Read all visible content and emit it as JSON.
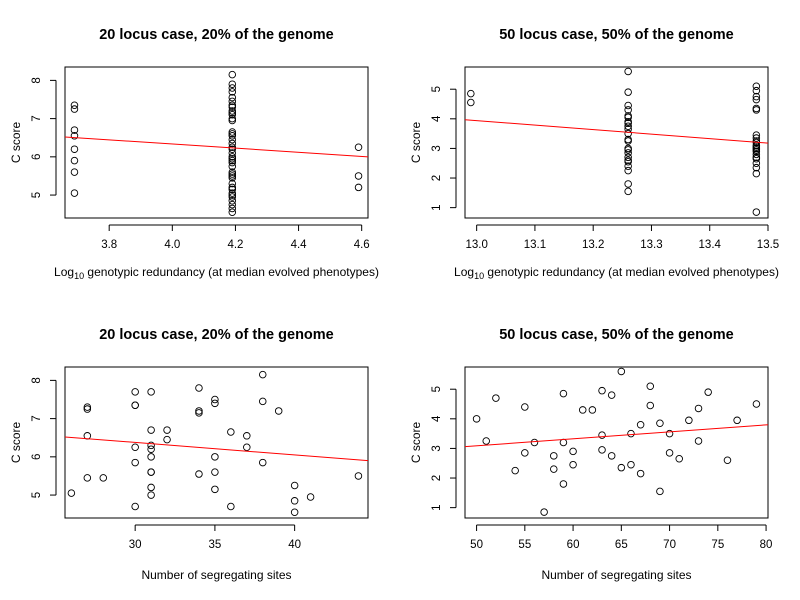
{
  "chart_data": [
    {
      "type": "scatter",
      "title": "20 locus case, 20% of the genome",
      "xlabel": "Log10 genotypic redundancy (at median evolved phenotypes)",
      "xlabel_main": "Log",
      "xlabel_sub": "10",
      "xlabel_rest": " genotypic redundancy (at median evolved phenotypes)",
      "ylabel": "C score",
      "xlim": [
        3.66,
        4.62
      ],
      "ylim": [
        4.4,
        8.35
      ],
      "xticks": [
        3.8,
        4.0,
        4.2,
        4.4,
        4.6
      ],
      "xtick_labels": [
        "3.8",
        "4.0",
        "4.2",
        "4.4",
        "4.6"
      ],
      "yticks": [
        5,
        6,
        7,
        8
      ],
      "ytick_labels": [
        "5",
        "6",
        "7",
        "8"
      ],
      "x": [
        3.69,
        3.69,
        3.69,
        3.69,
        3.69,
        3.69,
        3.69,
        3.69,
        4.19,
        4.19,
        4.19,
        4.19,
        4.19,
        4.19,
        4.19,
        4.19,
        4.19,
        4.19,
        4.19,
        4.19,
        4.19,
        4.19,
        4.19,
        4.19,
        4.19,
        4.19,
        4.19,
        4.19,
        4.19,
        4.19,
        4.19,
        4.19,
        4.19,
        4.19,
        4.19,
        4.19,
        4.19,
        4.19,
        4.19,
        4.19,
        4.19,
        4.19,
        4.19,
        4.19,
        4.19,
        4.19,
        4.19,
        4.19,
        4.59,
        4.59,
        4.59
      ],
      "y": [
        7.35,
        7.25,
        6.7,
        6.55,
        6.2,
        5.6,
        5.05,
        5.9,
        8.15,
        7.9,
        7.8,
        7.7,
        7.55,
        7.45,
        7.35,
        7.3,
        7.2,
        7.15,
        7.0,
        6.95,
        6.65,
        6.55,
        6.45,
        6.35,
        6.25,
        6.1,
        5.95,
        5.9,
        5.75,
        5.6,
        5.5,
        5.45,
        5.3,
        5.2,
        5.15,
        5.05,
        4.95,
        4.85,
        4.75,
        4.65,
        4.55,
        6.0,
        5.55,
        6.2,
        7.1,
        5.85,
        6.6,
        5.0,
        6.25,
        5.5,
        5.2
      ],
      "fit": {
        "x": [
          3.66,
          4.62
        ],
        "y": [
          6.52,
          6.0
        ]
      }
    },
    {
      "type": "scatter",
      "title": "50 locus case, 50% of the genome",
      "xlabel": "Log10 genotypic redundancy (at median evolved phenotypes)",
      "xlabel_main": "Log",
      "xlabel_sub": "10",
      "xlabel_rest": " genotypic redundancy (at median evolved phenotypes)",
      "ylabel": "C score",
      "xlim": [
        12.98,
        13.5
      ],
      "ylim": [
        0.65,
        5.75
      ],
      "xticks": [
        13.0,
        13.1,
        13.2,
        13.3,
        13.4,
        13.5
      ],
      "xtick_labels": [
        "13.0",
        "13.1",
        "13.2",
        "13.3",
        "13.4",
        "13.5"
      ],
      "yticks": [
        1,
        2,
        3,
        4,
        5
      ],
      "ytick_labels": [
        "1",
        "2",
        "3",
        "4",
        "5"
      ],
      "x": [
        12.99,
        12.99,
        13.26,
        13.26,
        13.26,
        13.26,
        13.26,
        13.26,
        13.26,
        13.26,
        13.26,
        13.26,
        13.26,
        13.26,
        13.26,
        13.26,
        13.26,
        13.26,
        13.26,
        13.26,
        13.26,
        13.26,
        13.26,
        13.26,
        13.26,
        13.48,
        13.48,
        13.48,
        13.48,
        13.48,
        13.48,
        13.48,
        13.48,
        13.48,
        13.48,
        13.48,
        13.48,
        13.48,
        13.48,
        13.48,
        13.48,
        13.48,
        13.48,
        13.48,
        13.48,
        13.48,
        13.48
      ],
      "y": [
        4.85,
        4.55,
        5.6,
        4.9,
        4.45,
        4.3,
        4.1,
        3.9,
        3.75,
        3.5,
        3.25,
        2.95,
        2.85,
        2.7,
        2.55,
        2.4,
        2.25,
        1.8,
        1.55,
        4.05,
        3.65,
        3.0,
        2.6,
        3.3,
        3.85,
        5.1,
        4.95,
        4.75,
        4.35,
        4.3,
        3.45,
        3.35,
        3.2,
        3.1,
        3.0,
        2.9,
        2.8,
        2.65,
        2.35,
        2.15,
        0.85,
        4.65,
        3.05,
        2.7,
        2.95,
        3.25,
        2.5
      ],
      "fit": {
        "x": [
          12.98,
          13.5
        ],
        "y": [
          3.97,
          3.18
        ]
      }
    },
    {
      "type": "scatter",
      "title": "20 locus case, 20% of the genome",
      "xlabel": "Number of segregating sites",
      "ylabel": "C score",
      "xlim": [
        25.6,
        44.6
      ],
      "ylim": [
        4.4,
        8.35
      ],
      "xticks": [
        30,
        35,
        40
      ],
      "xtick_labels": [
        "30",
        "35",
        "40"
      ],
      "yticks": [
        5,
        6,
        7,
        8
      ],
      "ytick_labels": [
        "5",
        "6",
        "7",
        "8"
      ],
      "x": [
        26,
        27,
        27,
        27,
        27,
        28,
        30,
        30,
        30,
        30,
        30,
        30,
        31,
        31,
        31,
        31,
        31,
        31,
        31,
        31,
        31,
        32,
        32,
        34,
        34,
        34,
        34,
        35,
        35,
        35,
        35,
        35,
        36,
        36,
        37,
        37,
        38,
        38,
        38,
        39,
        40,
        40,
        40,
        41,
        44
      ],
      "y": [
        5.05,
        7.3,
        7.25,
        6.55,
        5.45,
        5.45,
        7.7,
        7.35,
        7.35,
        6.25,
        5.85,
        4.7,
        7.7,
        6.7,
        6.3,
        6.2,
        5.6,
        5.6,
        5.2,
        5.0,
        6.0,
        6.7,
        6.45,
        7.8,
        7.2,
        7.15,
        5.55,
        7.5,
        7.4,
        6.0,
        5.6,
        5.15,
        6.65,
        4.7,
        6.55,
        6.25,
        8.15,
        7.45,
        5.85,
        7.2,
        5.25,
        4.85,
        4.55,
        4.95,
        5.5
      ],
      "fit": {
        "x": [
          25.6,
          44.6
        ],
        "y": [
          6.52,
          5.9
        ]
      }
    },
    {
      "type": "scatter",
      "title": "50 locus case, 50% of the genome",
      "xlabel": "Number of segregating sites",
      "ylabel": "C score",
      "xlim": [
        48.8,
        80.2
      ],
      "ylim": [
        0.65,
        5.75
      ],
      "xticks": [
        50,
        55,
        60,
        65,
        70,
        75,
        80
      ],
      "xtick_labels": [
        "50",
        "55",
        "60",
        "65",
        "70",
        "75",
        "80"
      ],
      "yticks": [
        1,
        2,
        3,
        4,
        5
      ],
      "ytick_labels": [
        "1",
        "2",
        "3",
        "4",
        "5"
      ],
      "x": [
        50,
        51,
        52,
        54,
        55,
        55,
        56,
        57,
        58,
        58,
        59,
        59,
        59,
        60,
        60,
        61,
        62,
        63,
        63,
        63,
        64,
        64,
        65,
        65,
        66,
        66,
        67,
        67,
        68,
        68,
        69,
        69,
        70,
        70,
        71,
        72,
        73,
        73,
        74,
        76,
        77,
        79
      ],
      "y": [
        4.0,
        3.25,
        4.7,
        2.25,
        4.4,
        2.85,
        3.2,
        0.85,
        2.3,
        2.75,
        4.85,
        3.2,
        1.8,
        2.9,
        2.45,
        4.3,
        4.3,
        4.95,
        3.45,
        2.95,
        2.75,
        4.8,
        5.6,
        2.35,
        2.45,
        3.5,
        3.8,
        2.15,
        5.1,
        4.45,
        1.55,
        3.85,
        3.5,
        2.85,
        2.65,
        3.95,
        4.35,
        3.25,
        4.9,
        2.6,
        3.95,
        4.5
      ],
      "fit": {
        "x": [
          48.8,
          80.2
        ],
        "y": [
          3.06,
          3.8
        ]
      }
    }
  ]
}
